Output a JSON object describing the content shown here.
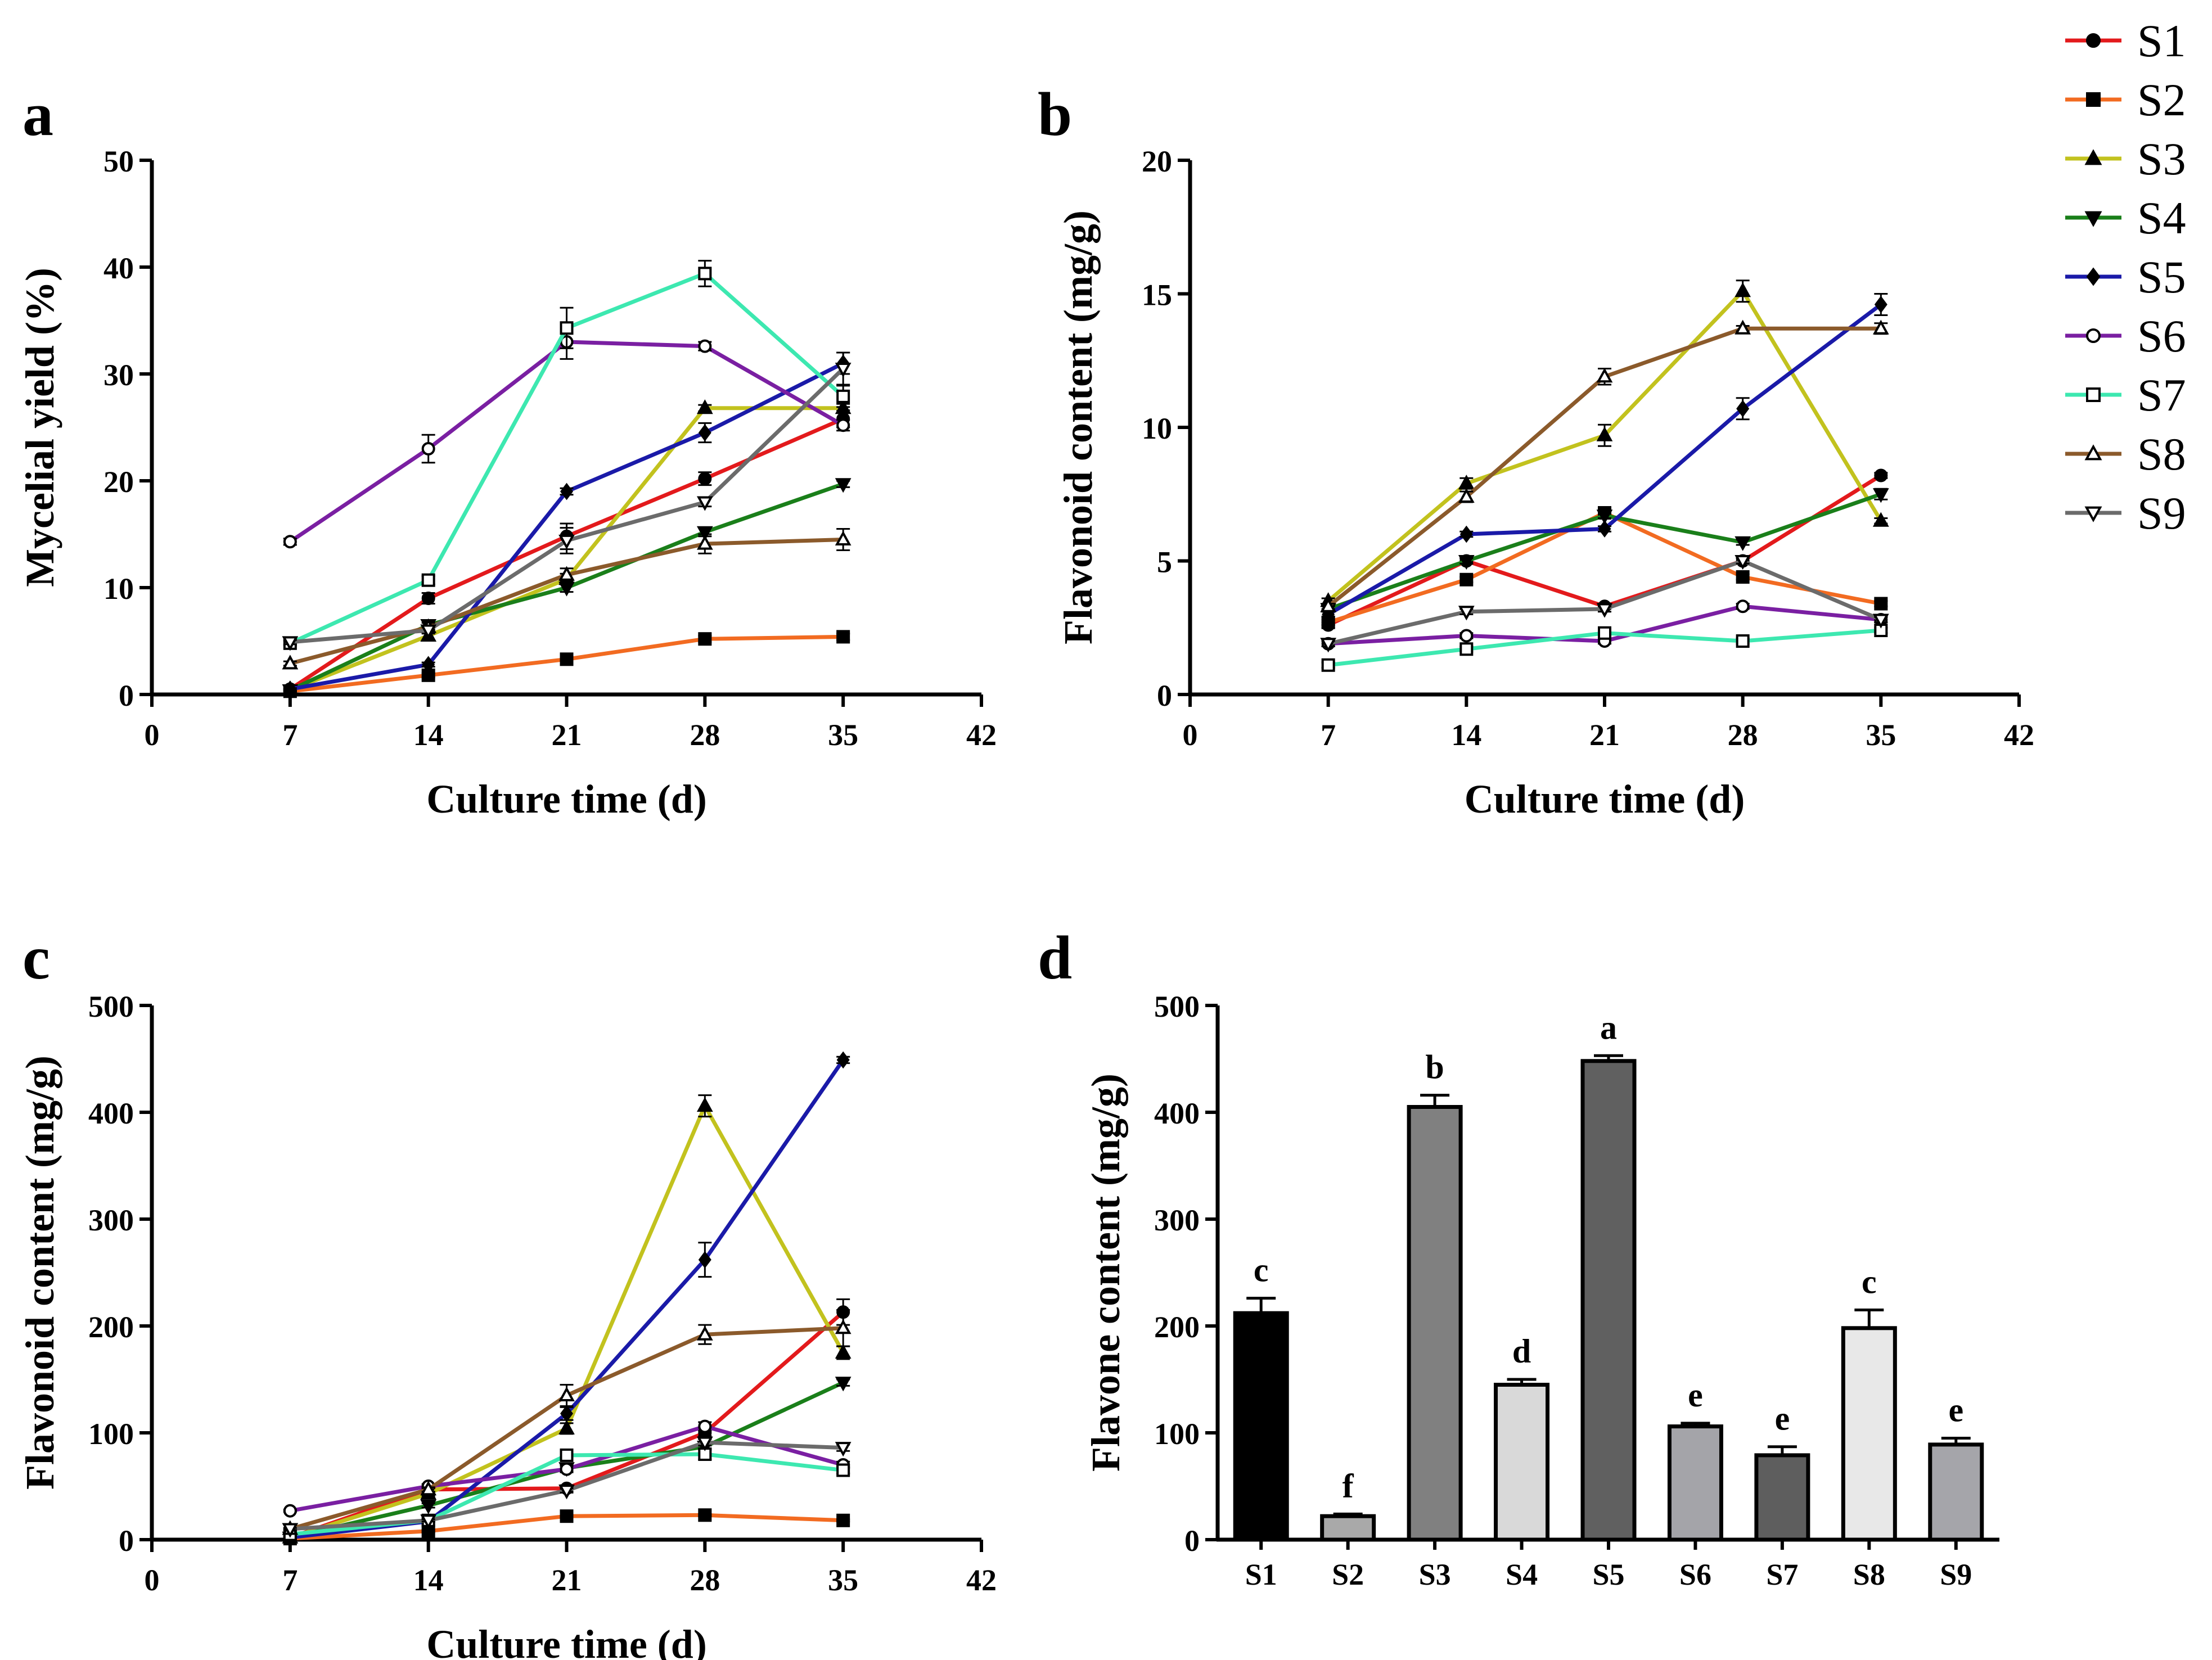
{
  "legend": [
    {
      "label": "S1",
      "color": "#e31a1c",
      "marker": "circle-filled"
    },
    {
      "label": "S2",
      "color": "#f26b21",
      "marker": "square-filled"
    },
    {
      "label": "S3",
      "color": "#c2c21e",
      "marker": "triangle-up-filled"
    },
    {
      "label": "S4",
      "color": "#1a7f1a",
      "marker": "triangle-down-filled"
    },
    {
      "label": "S5",
      "color": "#1a1aa8",
      "marker": "diamond-filled"
    },
    {
      "label": "S6",
      "color": "#7a1fa2",
      "marker": "circle-open"
    },
    {
      "label": "S7",
      "color": "#3de8b0",
      "marker": "square-open"
    },
    {
      "label": "S8",
      "color": "#8b5a2b",
      "marker": "triangle-up-open"
    },
    {
      "label": "S9",
      "color": "#6b6b6b",
      "marker": "triangle-down-open"
    }
  ],
  "chart_data": [
    {
      "panel": "a",
      "type": "line",
      "xlabel": "Culture time (d)",
      "ylabel": "Mycelial yield (%)",
      "xlim": [
        0,
        42
      ],
      "ylim": [
        0,
        50
      ],
      "xticks": [
        0,
        7,
        14,
        21,
        28,
        35,
        42
      ],
      "yticks": [
        0,
        10,
        20,
        30,
        40,
        50
      ],
      "x": [
        7,
        14,
        21,
        28,
        35
      ],
      "series": [
        {
          "name": "S1",
          "values": [
            0.5,
            9.0,
            14.8,
            20.2,
            25.8
          ],
          "err": [
            0.2,
            0.5,
            1.2,
            0.6,
            0.8
          ]
        },
        {
          "name": "S2",
          "values": [
            0.3,
            1.8,
            3.3,
            5.2,
            5.4
          ],
          "err": [
            0.1,
            0.2,
            0.2,
            0.3,
            0.3
          ]
        },
        {
          "name": "S3",
          "values": [
            0.4,
            5.5,
            10.8,
            26.8,
            26.8
          ],
          "err": [
            0.1,
            0.4,
            0.5,
            0.3,
            0.4
          ]
        },
        {
          "name": "S4",
          "values": [
            0.4,
            6.5,
            10.0,
            15.2,
            19.7
          ],
          "err": [
            0.1,
            0.4,
            0.4,
            0.4,
            0.3
          ]
        },
        {
          "name": "S5",
          "values": [
            0.5,
            2.8,
            19.0,
            24.5,
            31.0
          ],
          "err": [
            0.1,
            0.2,
            0.3,
            0.9,
            1.0
          ]
        },
        {
          "name": "S6",
          "values": [
            14.3,
            23.0,
            33.0,
            32.6,
            25.2
          ],
          "err": [
            0.3,
            1.3,
            1.6,
            0.4,
            0.5
          ]
        },
        {
          "name": "S7",
          "values": [
            4.8,
            10.7,
            34.3,
            39.4,
            27.9
          ],
          "err": [
            0.2,
            0.4,
            1.9,
            1.2,
            1.0
          ]
        },
        {
          "name": "S8",
          "values": [
            2.9,
            6.3,
            11.2,
            14.1,
            14.5
          ],
          "err": [
            0.2,
            0.4,
            0.6,
            0.9,
            1.0
          ]
        },
        {
          "name": "S9",
          "values": [
            4.9,
            6.0,
            14.4,
            18.0,
            30.5
          ],
          "err": [
            0.2,
            0.3,
            1.2,
            0.4,
            1.5
          ]
        }
      ]
    },
    {
      "panel": "b",
      "type": "line",
      "xlabel": "Culture time (d)",
      "ylabel": "Flavonoid content (mg/g)",
      "xlim": [
        0,
        42
      ],
      "ylim": [
        0,
        20
      ],
      "xticks": [
        0,
        7,
        14,
        21,
        28,
        35,
        42
      ],
      "yticks": [
        0,
        5,
        10,
        15,
        20
      ],
      "x": [
        7,
        14,
        21,
        28,
        35
      ],
      "series": [
        {
          "name": "S1",
          "values": [
            2.6,
            5.0,
            3.3,
            5.0,
            8.2
          ],
          "err": [
            0.1,
            0.1,
            0.1,
            0.1,
            0.1
          ]
        },
        {
          "name": "S2",
          "values": [
            2.7,
            4.3,
            6.8,
            4.4,
            3.4
          ],
          "err": [
            0.1,
            0.1,
            0.1,
            0.1,
            0.1
          ]
        },
        {
          "name": "S3",
          "values": [
            3.5,
            7.9,
            9.7,
            15.1,
            6.5
          ],
          "err": [
            0.1,
            0.2,
            0.4,
            0.4,
            0.1
          ]
        },
        {
          "name": "S4",
          "values": [
            3.2,
            5.0,
            6.7,
            5.7,
            7.5
          ],
          "err": [
            0.1,
            0.1,
            0.1,
            0.1,
            0.2
          ]
        },
        {
          "name": "S5",
          "values": [
            3.0,
            6.0,
            6.2,
            10.7,
            14.6
          ],
          "err": [
            0.1,
            0.1,
            0.1,
            0.4,
            0.4
          ]
        },
        {
          "name": "S6",
          "values": [
            1.9,
            2.2,
            2.0,
            3.3,
            2.8
          ],
          "err": [
            0.1,
            0.1,
            0.1,
            0.1,
            0.1
          ]
        },
        {
          "name": "S7",
          "values": [
            1.1,
            1.7,
            2.3,
            2.0,
            2.4
          ],
          "err": [
            0.1,
            0.1,
            0.1,
            0.1,
            0.1
          ]
        },
        {
          "name": "S8",
          "values": [
            3.3,
            7.4,
            11.9,
            13.7,
            13.7
          ],
          "err": [
            0.1,
            0.2,
            0.3,
            0.1,
            0.2
          ]
        },
        {
          "name": "S9",
          "values": [
            1.9,
            3.1,
            3.2,
            5.0,
            2.8
          ],
          "err": [
            0.1,
            0.1,
            0.1,
            0.1,
            0.1
          ]
        }
      ]
    },
    {
      "panel": "c",
      "type": "line",
      "xlabel": "Culture time (d)",
      "ylabel": "Flavonoid content (mg/g)",
      "xlim": [
        0,
        42
      ],
      "ylim": [
        0,
        500
      ],
      "xticks": [
        0,
        7,
        14,
        21,
        28,
        35,
        42
      ],
      "yticks": [
        0,
        100,
        200,
        300,
        400,
        500
      ],
      "x": [
        7,
        14,
        21,
        28,
        35
      ],
      "series": [
        {
          "name": "S1",
          "values": [
            2,
            47,
            48,
            100,
            213
          ],
          "err": [
            1,
            2,
            3,
            3,
            12
          ]
        },
        {
          "name": "S2",
          "values": [
            1,
            8,
            22,
            23,
            18
          ],
          "err": [
            0.5,
            1,
            1,
            1,
            1
          ]
        },
        {
          "name": "S3",
          "values": [
            2,
            43,
            104,
            406,
            175
          ],
          "err": [
            1,
            2,
            5,
            10,
            6
          ]
        },
        {
          "name": "S4",
          "values": [
            2,
            32,
            67,
            87,
            147
          ],
          "err": [
            1,
            2,
            3,
            3,
            3
          ]
        },
        {
          "name": "S5",
          "values": [
            2,
            17,
            118,
            262,
            449
          ],
          "err": [
            1,
            1,
            6,
            16,
            3
          ]
        },
        {
          "name": "S6",
          "values": [
            27,
            50,
            66,
            106,
            70
          ],
          "err": [
            1,
            2,
            3,
            4,
            3
          ]
        },
        {
          "name": "S7",
          "values": [
            5,
            18,
            79,
            80,
            65
          ],
          "err": [
            1,
            1,
            3,
            5,
            3
          ]
        },
        {
          "name": "S8",
          "values": [
            10,
            47,
            135,
            192,
            198
          ],
          "err": [
            1,
            2,
            10,
            9,
            17
          ]
        },
        {
          "name": "S9",
          "values": [
            10,
            18,
            46,
            91,
            86
          ],
          "err": [
            1,
            1,
            2,
            3,
            3
          ]
        }
      ]
    },
    {
      "panel": "d",
      "type": "bar",
      "ylabel": "Flavone content (mg/g)",
      "ylim": [
        0,
        500
      ],
      "yticks": [
        0,
        100,
        200,
        300,
        400,
        500
      ],
      "categories": [
        "S1",
        "S2",
        "S3",
        "S4",
        "S5",
        "S6",
        "S7",
        "S8",
        "S9"
      ],
      "values": [
        212,
        22,
        405,
        145,
        448,
        106,
        79,
        198,
        89
      ],
      "err": [
        14,
        2,
        11,
        5,
        5,
        3,
        8,
        17,
        6
      ],
      "significance": [
        "c",
        "f",
        "b",
        "d",
        "a",
        "e",
        "e",
        "c",
        "e"
      ],
      "bar_colors": [
        "#000000",
        "#a9a9a9",
        "#808080",
        "#d9d9d9",
        "#606060",
        "#a4a4a9",
        "#5e5e5e",
        "#e8e8e8",
        "#a5a5aa"
      ]
    }
  ],
  "panel_letters": [
    "a",
    "b",
    "c",
    "d"
  ]
}
